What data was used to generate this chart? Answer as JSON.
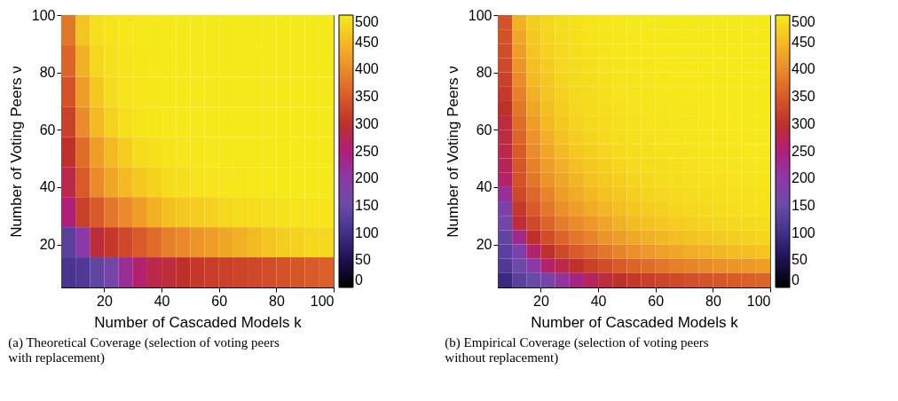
{
  "chart_data": [
    {
      "type": "heatmap",
      "title": "(a) Theoretical Coverage (selection of voting peers with replacement)",
      "xlabel": "Number of Cascaded Models k",
      "ylabel": "Number of Voting Peers ν",
      "x": [
        7.5,
        12.5,
        17.5,
        22.5,
        27.5,
        32.5,
        37.5,
        42.5,
        47.5,
        52.5,
        57.5,
        62.5,
        67.5,
        72.5,
        77.5,
        82.5,
        87.5,
        92.5,
        97.5
      ],
      "y": [
        95,
        84,
        73,
        63,
        52,
        42,
        31,
        21,
        10
      ],
      "cells": [
        [
          380,
          460,
          490,
          495,
          497,
          498,
          499,
          499,
          499,
          499,
          499,
          499,
          499,
          499,
          499,
          499,
          499,
          499,
          499
        ],
        [
          360,
          440,
          480,
          490,
          495,
          497,
          498,
          499,
          499,
          499,
          499,
          499,
          499,
          499,
          499,
          499,
          499,
          499,
          499
        ],
        [
          340,
          420,
          465,
          485,
          493,
          496,
          498,
          499,
          499,
          499,
          499,
          499,
          499,
          499,
          499,
          499,
          499,
          499,
          499
        ],
        [
          320,
          400,
          450,
          475,
          490,
          495,
          497,
          498,
          499,
          499,
          499,
          499,
          499,
          499,
          499,
          499,
          499,
          499,
          499
        ],
        [
          300,
          370,
          420,
          450,
          470,
          485,
          490,
          494,
          496,
          497,
          498,
          499,
          499,
          499,
          499,
          499,
          499,
          499,
          499
        ],
        [
          280,
          350,
          400,
          430,
          450,
          465,
          475,
          485,
          490,
          493,
          495,
          496,
          497,
          498,
          499,
          499,
          499,
          499,
          499
        ],
        [
          250,
          320,
          350,
          380,
          400,
          420,
          440,
          455,
          465,
          470,
          475,
          480,
          485,
          488,
          490,
          492,
          494,
          495,
          495
        ],
        [
          130,
          200,
          290,
          310,
          330,
          350,
          370,
          390,
          400,
          410,
          420,
          430,
          440,
          450,
          460,
          470,
          475,
          480,
          480
        ],
        [
          110,
          120,
          140,
          170,
          220,
          260,
          280,
          290,
          300,
          310,
          315,
          320,
          325,
          330,
          335,
          340,
          345,
          350,
          355
        ]
      ],
      "xlim": [
        5,
        100
      ],
      "ylim": [
        5,
        100
      ],
      "xticks": [
        20,
        40,
        60,
        80,
        100
      ],
      "yticks": [
        20,
        40,
        60,
        80,
        100
      ],
      "clim": [
        0,
        500
      ],
      "cticks": [
        0,
        50,
        100,
        150,
        200,
        250,
        300,
        350,
        400,
        450,
        500
      ],
      "colors": [
        "#000000",
        "#1e1050",
        "#40308a",
        "#6a4aa8",
        "#8a3aa8",
        "#b01e7a",
        "#c0302a",
        "#d85a28",
        "#ea8a2a",
        "#f4ba22",
        "#f6ea1a"
      ],
      "grid": false
    },
    {
      "type": "heatmap",
      "title": "(b) Empirical Coverage (selection of voting peers without replacement)",
      "xlabel": "Number of Cascaded Models k",
      "ylabel": "Number of Voting Peers ν",
      "x": [
        7.5,
        12.5,
        17.5,
        22.5,
        27.5,
        32.5,
        37.5,
        42.5,
        47.5,
        52.5,
        57.5,
        62.5,
        67.5,
        72.5,
        77.5,
        82.5,
        87.5,
        92.5,
        97.5
      ],
      "y": [
        97.5,
        92.5,
        87.5,
        82.5,
        77.5,
        72.5,
        67.5,
        62.5,
        57.5,
        52.5,
        47.5,
        42.5,
        37.5,
        32.5,
        27.5,
        22.5,
        17.5,
        12.5,
        7.5
      ],
      "cells": [
        [
          340,
          440,
          470,
          480,
          488,
          492,
          495,
          497,
          498,
          499,
          499,
          499,
          499,
          499,
          499,
          499,
          499,
          499,
          499
        ],
        [
          340,
          430,
          465,
          478,
          485,
          490,
          493,
          495,
          497,
          498,
          499,
          499,
          499,
          499,
          499,
          499,
          499,
          499,
          499
        ],
        [
          335,
          420,
          460,
          475,
          483,
          488,
          492,
          494,
          496,
          497,
          498,
          499,
          499,
          499,
          499,
          499,
          499,
          499,
          499
        ],
        [
          330,
          410,
          455,
          470,
          480,
          486,
          490,
          493,
          495,
          496,
          497,
          498,
          498,
          499,
          499,
          499,
          499,
          499,
          499
        ],
        [
          320,
          400,
          450,
          465,
          478,
          484,
          488,
          492,
          494,
          495,
          496,
          497,
          498,
          498,
          499,
          499,
          499,
          499,
          499
        ],
        [
          310,
          390,
          440,
          460,
          475,
          482,
          486,
          490,
          493,
          494,
          495,
          496,
          497,
          498,
          498,
          499,
          499,
          499,
          499
        ],
        [
          300,
          380,
          430,
          455,
          470,
          480,
          484,
          488,
          491,
          493,
          494,
          495,
          496,
          497,
          498,
          498,
          499,
          499,
          499
        ],
        [
          290,
          370,
          420,
          450,
          465,
          476,
          482,
          486,
          489,
          492,
          493,
          494,
          495,
          496,
          497,
          498,
          498,
          499,
          499
        ],
        [
          285,
          360,
          410,
          440,
          458,
          470,
          478,
          483,
          487,
          490,
          492,
          493,
          494,
          495,
          496,
          497,
          498,
          498,
          499
        ],
        [
          280,
          350,
          400,
          430,
          450,
          465,
          472,
          478,
          483,
          487,
          490,
          491,
          492,
          494,
          495,
          496,
          497,
          498,
          498
        ],
        [
          270,
          345,
          390,
          420,
          440,
          455,
          465,
          472,
          478,
          483,
          486,
          488,
          490,
          492,
          493,
          494,
          495,
          496,
          497
        ],
        [
          260,
          340,
          380,
          410,
          430,
          445,
          458,
          466,
          472,
          478,
          482,
          485,
          487,
          489,
          491,
          492,
          493,
          494,
          495
        ],
        [
          220,
          330,
          365,
          395,
          420,
          435,
          448,
          458,
          465,
          472,
          477,
          480,
          483,
          486,
          488,
          490,
          491,
          492,
          493
        ],
        [
          180,
          310,
          350,
          380,
          405,
          420,
          435,
          445,
          455,
          463,
          470,
          474,
          478,
          481,
          484,
          486,
          488,
          490,
          491
        ],
        [
          160,
          290,
          330,
          360,
          385,
          400,
          415,
          428,
          440,
          450,
          458,
          464,
          469,
          473,
          477,
          480,
          482,
          484,
          486
        ],
        [
          140,
          230,
          300,
          335,
          360,
          380,
          395,
          410,
          420,
          432,
          440,
          447,
          453,
          459,
          464,
          468,
          472,
          475,
          478
        ],
        [
          130,
          180,
          260,
          300,
          330,
          350,
          365,
          380,
          395,
          405,
          415,
          423,
          430,
          436,
          442,
          447,
          452,
          456,
          460
        ],
        [
          120,
          150,
          200,
          260,
          280,
          300,
          320,
          335,
          350,
          360,
          370,
          380,
          388,
          395,
          401,
          407,
          412,
          416,
          420
        ],
        [
          90,
          130,
          150,
          170,
          210,
          240,
          270,
          290,
          300,
          310,
          318,
          325,
          331,
          337,
          342,
          347,
          351,
          355,
          360
        ]
      ],
      "xlim": [
        5,
        100
      ],
      "ylim": [
        5,
        100
      ],
      "xticks": [
        20,
        40,
        60,
        80,
        100
      ],
      "yticks": [
        20,
        40,
        60,
        80,
        100
      ],
      "clim": [
        0,
        500
      ],
      "cticks": [
        0,
        50,
        100,
        150,
        200,
        250,
        300,
        350,
        400,
        450,
        500
      ],
      "colors": [
        "#000000",
        "#1e1050",
        "#40308a",
        "#6a4aa8",
        "#8a3aa8",
        "#b01e7a",
        "#c0302a",
        "#d85a28",
        "#ea8a2a",
        "#f4ba22",
        "#f6ea1a"
      ],
      "grid": false
    }
  ]
}
